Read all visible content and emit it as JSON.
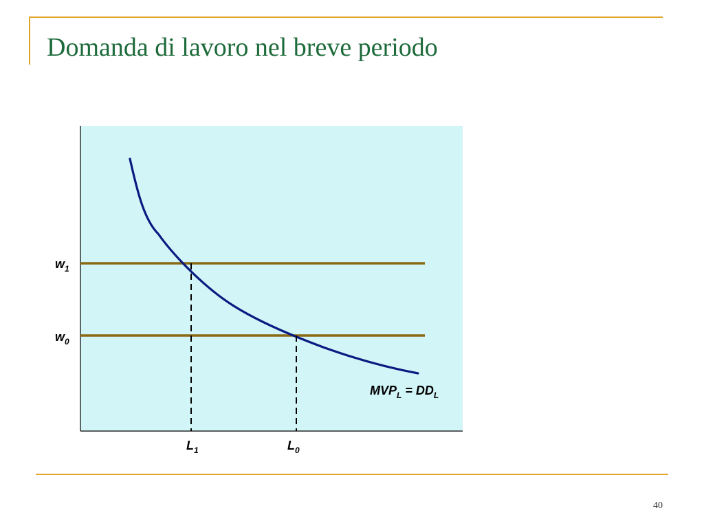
{
  "slide": {
    "title": "Domanda di lavoro nel breve periodo",
    "page_number": "40"
  },
  "diagram": {
    "y_labels": [
      {
        "base": "w",
        "sub": "1"
      },
      {
        "base": "w",
        "sub": "0"
      }
    ],
    "x_labels": [
      {
        "base": "L",
        "sub": "1"
      },
      {
        "base": "L",
        "sub": "0"
      }
    ],
    "curve_label": {
      "part1": "MVP",
      "sub1": "L",
      "part2": " = DD",
      "sub2": "L"
    },
    "colors": {
      "panel_bg": "#d2f5f8",
      "curve": "#0a1a80",
      "wage_lines": "#8a6a12",
      "frame_accent": "#e0a52a",
      "title": "#1d6a3a"
    }
  }
}
